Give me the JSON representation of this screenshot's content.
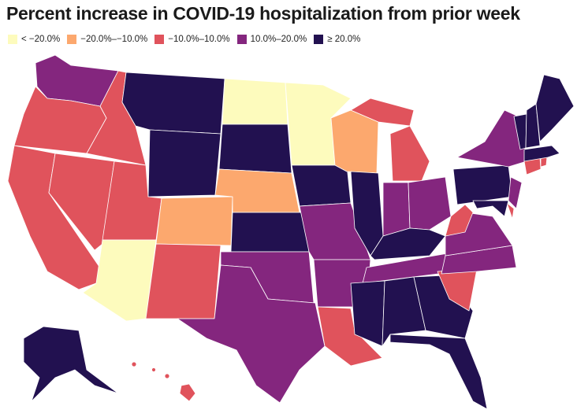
{
  "title": "Percent increase in COVID-19 hospitalization from prior week",
  "colors": {
    "lt_neg20": "#fdfbbd",
    "neg20_neg10": "#fca86e",
    "neg10_pos10": "#e0535c",
    "pos10_pos20": "#84267e",
    "gte20": "#221150"
  },
  "legend": [
    {
      "label": "< −20.0%",
      "color": "#fdfbbd"
    },
    {
      "label": "−20.0%–−10.0%",
      "color": "#fca86e"
    },
    {
      "label": "−10.0%–10.0%",
      "color": "#e0535c"
    },
    {
      "label": "10.0%–20.0%",
      "color": "#84267e"
    },
    {
      "label": "≥ 20.0%",
      "color": "#221150"
    }
  ]
}
